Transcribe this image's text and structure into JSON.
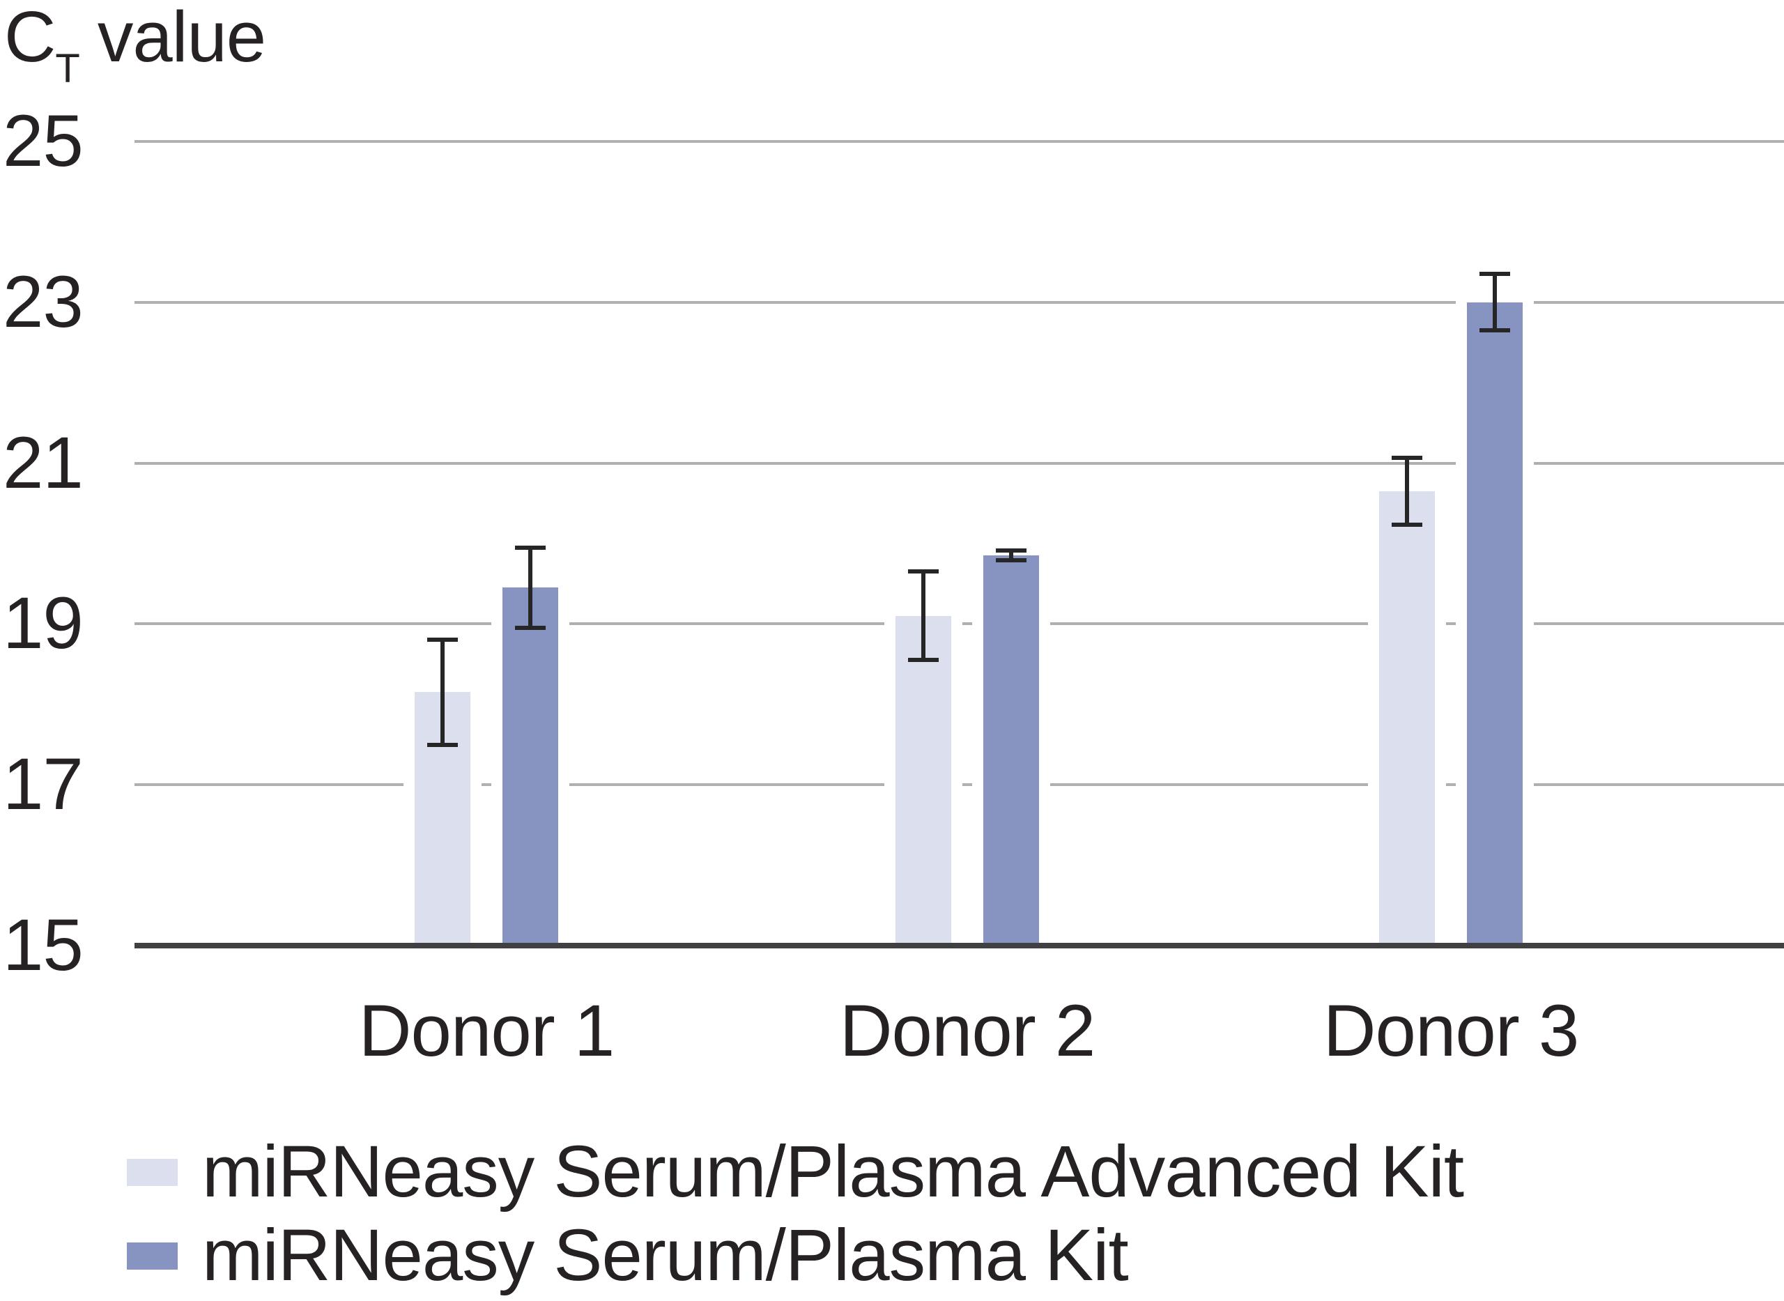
{
  "chart_data": {
    "type": "bar",
    "title": {
      "main": "C",
      "sub": "T",
      "rest": "value"
    },
    "categories": [
      "Donor 1",
      "Donor 2",
      "Donor 3"
    ],
    "series": [
      {
        "name": "miRNeasy Serum/Plasma Advanced Kit",
        "color": "#dcdfee",
        "values": [
          18.15,
          19.1,
          20.65
        ],
        "errors": [
          0.65,
          0.55,
          0.42
        ]
      },
      {
        "name": "miRNeasy Serum/Plasma Kit",
        "color": "#8794c1",
        "values": [
          19.45,
          19.85,
          23.0
        ],
        "errors": [
          0.5,
          0.06,
          0.35
        ]
      }
    ],
    "ylim": [
      15,
      25
    ],
    "yticks": [
      15,
      17,
      19,
      21,
      23,
      25
    ],
    "grid": "horizontal",
    "legend_position": "bottom-left",
    "colors": {
      "gridline": "#b1afb2",
      "axis": "#404042",
      "error_bar": "#262626",
      "text": "#262223"
    }
  }
}
